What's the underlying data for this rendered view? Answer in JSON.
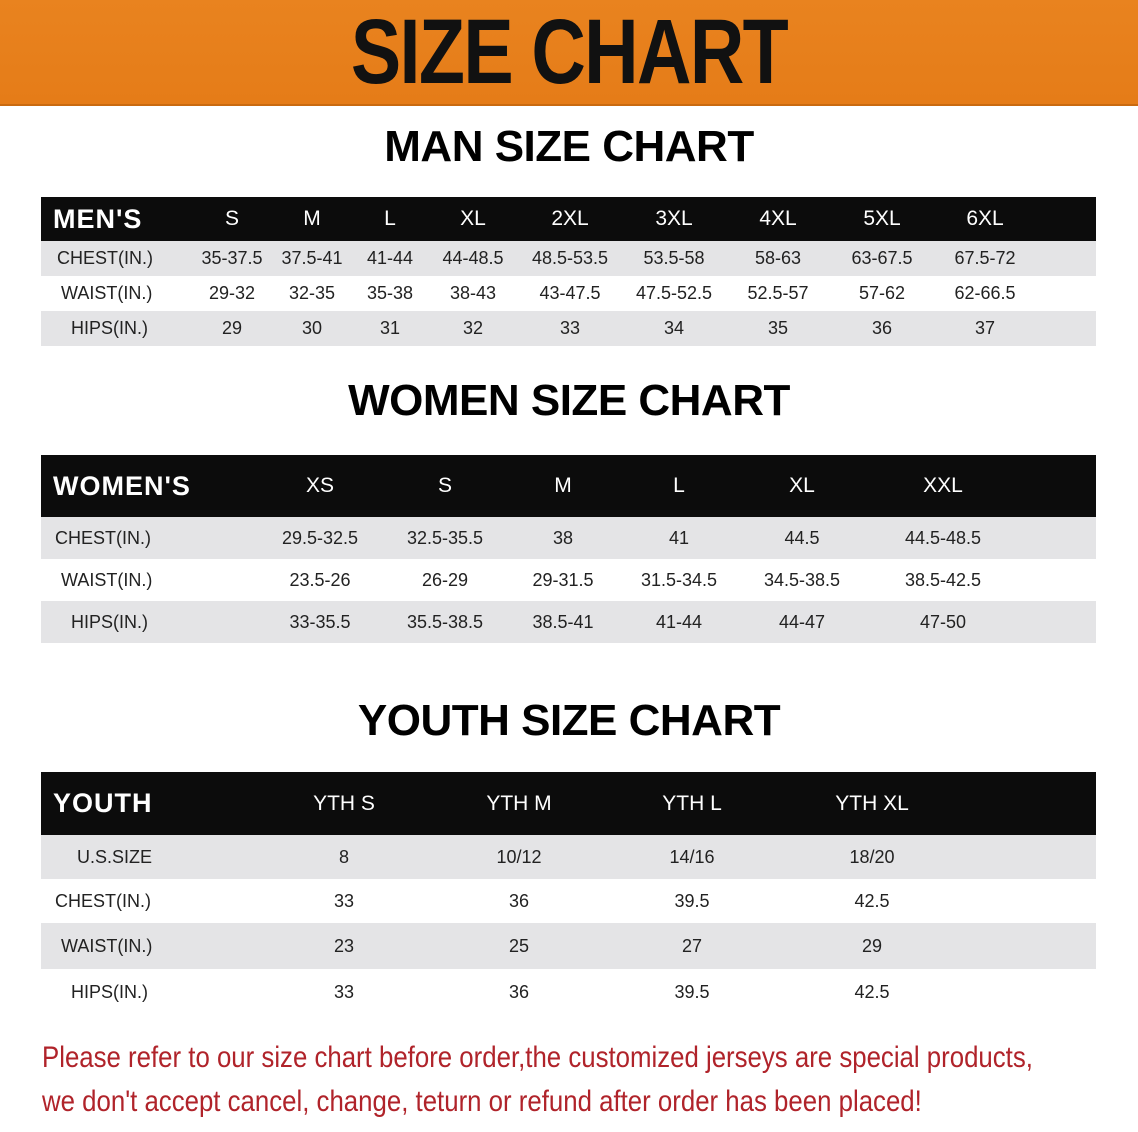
{
  "banner": {
    "title": "SIZE CHART",
    "color": "#e8811d"
  },
  "men": {
    "title": "MAN SIZE CHART",
    "header": [
      "MEN'S",
      "S",
      "M",
      "L",
      "XL",
      "2XL",
      "3XL",
      "4XL",
      "5XL",
      "6XL"
    ],
    "rows": [
      [
        "CHEST(IN.)",
        "35-37.5",
        "37.5-41",
        "41-44",
        "44-48.5",
        "48.5-53.5",
        "53.5-58",
        "58-63",
        "63-67.5",
        "67.5-72"
      ],
      [
        "WAIST(IN.)",
        "29-32",
        "32-35",
        "35-38",
        "38-43",
        "43-47.5",
        "47.5-52.5",
        "52.5-57",
        "57-62",
        "62-66.5"
      ],
      [
        "HIPS(IN.)",
        "29",
        "30",
        "31",
        "32",
        "33",
        "34",
        "35",
        "36",
        "37"
      ]
    ]
  },
  "women": {
    "title": "WOMEN SIZE CHART",
    "header": [
      "WOMEN'S",
      "XS",
      "S",
      "M",
      "L",
      "XL",
      "XXL"
    ],
    "rows": [
      [
        "CHEST(IN.)",
        "29.5-32.5",
        "32.5-35.5",
        "38",
        "41",
        "44.5",
        "44.5-48.5"
      ],
      [
        "WAIST(IN.)",
        "23.5-26",
        "26-29",
        "29-31.5",
        "31.5-34.5",
        "34.5-38.5",
        "38.5-42.5"
      ],
      [
        "HIPS(IN.)",
        "33-35.5",
        "35.5-38.5",
        "38.5-41",
        "41-44",
        "44-47",
        "47-50"
      ]
    ]
  },
  "youth": {
    "title": "YOUTH SIZE CHART",
    "header": [
      "YOUTH",
      "YTH S",
      "YTH M",
      "YTH L",
      "YTH XL"
    ],
    "rows": [
      [
        "U.S.SIZE",
        "8",
        "10/12",
        "14/16",
        "18/20"
      ],
      [
        "CHEST(IN.)",
        "33",
        "36",
        "39.5",
        "42.5"
      ],
      [
        "WAIST(IN.)",
        "23",
        "25",
        "27",
        "29"
      ],
      [
        "HIPS(IN.)",
        "33",
        "36",
        "39.5",
        "42.5"
      ]
    ]
  },
  "note": {
    "line1": "Please refer to our size chart before order,the customized jerseys are special products,",
    "line2": "we don't accept cancel, change, teturn or refund after order has been placed!",
    "color": "#b0232a"
  }
}
